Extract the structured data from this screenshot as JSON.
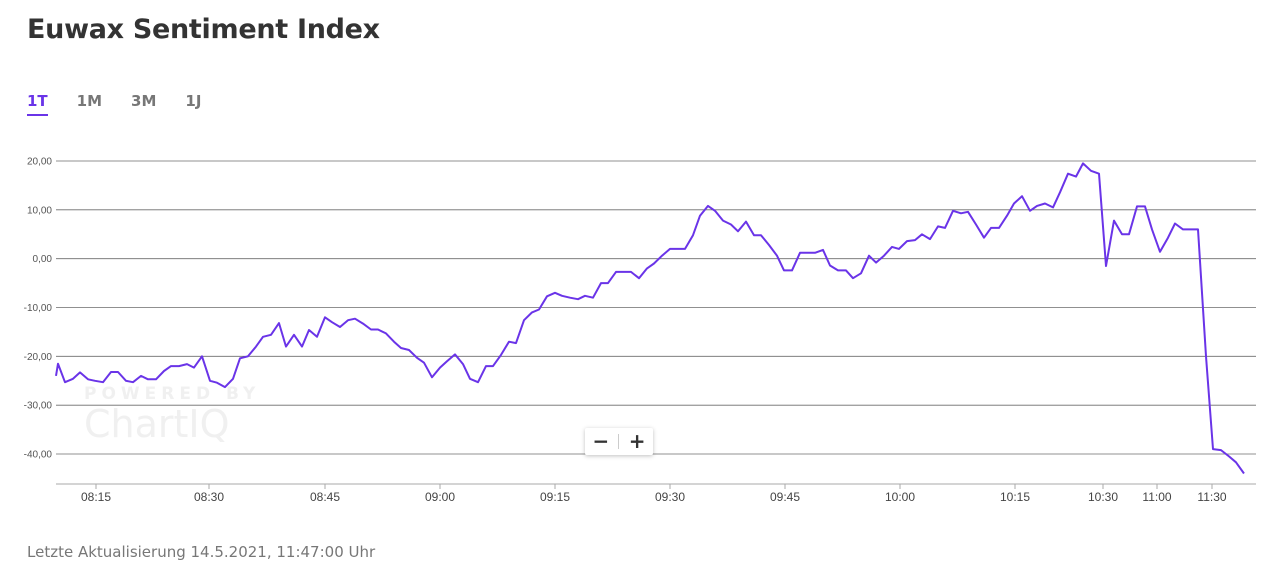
{
  "page": {
    "title": "Euwax Sentiment Index",
    "tabs": [
      {
        "label": "1T",
        "active": true
      },
      {
        "label": "1M",
        "active": false
      },
      {
        "label": "3M",
        "active": false
      },
      {
        "label": "1J",
        "active": false
      }
    ],
    "zoom_out_label": "−",
    "zoom_in_label": "+",
    "watermark_top": "POWERED BY",
    "watermark_bottom": "ChartIQ",
    "footer": "Letzte Aktualisierung 14.5.2021, 11:47:00 Uhr",
    "line_color": "#6a34e8"
  },
  "chart_data": {
    "type": "line",
    "title": "",
    "xlabel": "",
    "ylabel": "",
    "ylim": [
      -46,
      22
    ],
    "xlim": [
      "08:09",
      "11:45"
    ],
    "grid": true,
    "y_ticks": [
      20,
      10,
      0,
      -10,
      -20,
      -30,
      -40
    ],
    "y_tick_labels": [
      "20,00",
      "10,00",
      "0,00",
      "-10,00",
      "-20,00",
      "-30,00",
      "-40,00"
    ],
    "x_tick_times": [
      "08:15",
      "08:30",
      "08:45",
      "09:00",
      "09:15",
      "09:30",
      "09:45",
      "10:00",
      "10:15",
      "10:30",
      "11:00",
      "11:30"
    ],
    "x_tick_pos": [
      96,
      209,
      325,
      440,
      555,
      670,
      785,
      900,
      1015,
      1103,
      1157,
      1212
    ],
    "series": [
      {
        "points": [
          [
            56,
            -24
          ],
          [
            58,
            -21.5
          ],
          [
            65,
            -25.3
          ],
          [
            73,
            -24.6
          ],
          [
            80,
            -23.3
          ],
          [
            88,
            -24.7
          ],
          [
            95,
            -25
          ],
          [
            103,
            -25.3
          ],
          [
            111,
            -23.2
          ],
          [
            118,
            -23.2
          ],
          [
            126,
            -25
          ],
          [
            133,
            -25.3
          ],
          [
            141,
            -24
          ],
          [
            148,
            -24.7
          ],
          [
            156,
            -24.7
          ],
          [
            164,
            -23
          ],
          [
            171,
            -22
          ],
          [
            179,
            -22
          ],
          [
            187,
            -21.6
          ],
          [
            194,
            -22.3
          ],
          [
            202,
            -20
          ],
          [
            210,
            -25
          ],
          [
            217,
            -25.4
          ],
          [
            225,
            -26.3
          ],
          [
            233,
            -24.6
          ],
          [
            240,
            -20.4
          ],
          [
            248,
            -20
          ],
          [
            256,
            -18
          ],
          [
            263,
            -16
          ],
          [
            271,
            -15.6
          ],
          [
            279,
            -13.2
          ],
          [
            286,
            -18
          ],
          [
            294,
            -15.6
          ],
          [
            302,
            -18
          ],
          [
            309,
            -14.6
          ],
          [
            317,
            -16
          ],
          [
            325,
            -12
          ],
          [
            332,
            -13
          ],
          [
            340,
            -14
          ],
          [
            348,
            -12.6
          ],
          [
            355,
            -12.3
          ],
          [
            363,
            -13.3
          ],
          [
            371,
            -14.5
          ],
          [
            378,
            -14.5
          ],
          [
            386,
            -15.3
          ],
          [
            394,
            -17
          ],
          [
            401,
            -18.3
          ],
          [
            409,
            -18.7
          ],
          [
            417,
            -20.3
          ],
          [
            424,
            -21.3
          ],
          [
            432,
            -24.3
          ],
          [
            440,
            -22.3
          ],
          [
            447,
            -21
          ],
          [
            455,
            -19.6
          ],
          [
            463,
            -21.6
          ],
          [
            470,
            -24.6
          ],
          [
            478,
            -25.3
          ],
          [
            486,
            -22
          ],
          [
            493,
            -22
          ],
          [
            501,
            -19.7
          ],
          [
            509,
            -17
          ],
          [
            516,
            -17.3
          ],
          [
            524,
            -12.6
          ],
          [
            532,
            -11
          ],
          [
            539,
            -10.4
          ],
          [
            547,
            -7.7
          ],
          [
            555,
            -7
          ],
          [
            562,
            -7.6
          ],
          [
            570,
            -8
          ],
          [
            578,
            -8.3
          ],
          [
            585,
            -7.6
          ],
          [
            593,
            -8
          ],
          [
            601,
            -5
          ],
          [
            608,
            -5
          ],
          [
            616,
            -2.7
          ],
          [
            624,
            -2.7
          ],
          [
            631,
            -2.7
          ],
          [
            639,
            -4
          ],
          [
            647,
            -2
          ],
          [
            654,
            -1
          ],
          [
            662,
            0.6
          ],
          [
            670,
            2
          ],
          [
            677,
            2
          ],
          [
            685,
            2
          ],
          [
            693,
            4.8
          ],
          [
            700,
            8.8
          ],
          [
            708,
            10.8
          ],
          [
            715,
            9.8
          ],
          [
            723,
            7.8
          ],
          [
            731,
            7
          ],
          [
            738,
            5.6
          ],
          [
            746,
            7.6
          ],
          [
            754,
            4.8
          ],
          [
            761,
            4.8
          ],
          [
            769,
            2.8
          ],
          [
            777,
            0.6
          ],
          [
            784,
            -2.4
          ],
          [
            792,
            -2.4
          ],
          [
            800,
            1.2
          ],
          [
            808,
            1.2
          ],
          [
            815,
            1.2
          ],
          [
            823,
            1.8
          ],
          [
            830,
            -1.4
          ],
          [
            838,
            -2.4
          ],
          [
            846,
            -2.4
          ],
          [
            853,
            -4
          ],
          [
            861,
            -3
          ],
          [
            869,
            0.6
          ],
          [
            876,
            -0.8
          ],
          [
            884,
            0.6
          ],
          [
            892,
            2.4
          ],
          [
            899,
            2
          ],
          [
            907,
            3.6
          ],
          [
            915,
            3.8
          ],
          [
            922,
            5
          ],
          [
            930,
            4
          ],
          [
            938,
            6.6
          ],
          [
            945,
            6.3
          ],
          [
            953,
            9.8
          ],
          [
            961,
            9.3
          ],
          [
            968,
            9.6
          ],
          [
            976,
            7
          ],
          [
            984,
            4.3
          ],
          [
            991,
            6.3
          ],
          [
            999,
            6.3
          ],
          [
            1007,
            8.8
          ],
          [
            1014,
            11.3
          ],
          [
            1022,
            12.8
          ],
          [
            1030,
            9.8
          ],
          [
            1037,
            10.8
          ],
          [
            1045,
            11.3
          ],
          [
            1053,
            10.5
          ],
          [
            1060,
            13.6
          ],
          [
            1068,
            17.4
          ],
          [
            1076,
            16.8
          ],
          [
            1083,
            19.5
          ],
          [
            1091,
            18
          ],
          [
            1099,
            17.4
          ],
          [
            1106,
            -1.5
          ],
          [
            1114,
            7.8
          ],
          [
            1122,
            5
          ],
          [
            1129,
            5
          ],
          [
            1137,
            10.7
          ],
          [
            1145,
            10.7
          ],
          [
            1152,
            6
          ],
          [
            1160,
            1.4
          ],
          [
            1168,
            4.3
          ],
          [
            1175,
            7.2
          ],
          [
            1183,
            6
          ],
          [
            1191,
            6
          ],
          [
            1198,
            6
          ],
          [
            1206,
            -20
          ],
          [
            1213,
            -39
          ],
          [
            1221,
            -39.2
          ],
          [
            1229,
            -40.5
          ],
          [
            1236,
            -41.7
          ],
          [
            1244,
            -44
          ]
        ]
      }
    ]
  }
}
